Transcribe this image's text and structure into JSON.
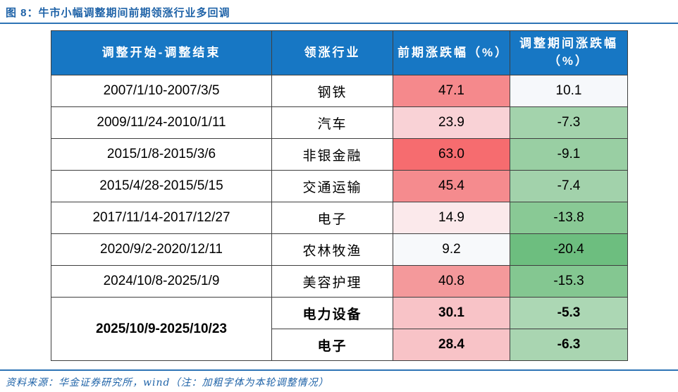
{
  "figure": {
    "title": "图 8：牛市小幅调整期间前期领涨行业多回调",
    "source_note": "资料来源：华金证券研究所，wind（注：加粗字体为本轮调整情况）"
  },
  "colors": {
    "header_bg": "#1777C4",
    "title_blue": "#1F63A8",
    "rule_blue": "#2E74B5",
    "border": "#3F3F3F"
  },
  "table": {
    "headers": [
      "调整开始-调整结束",
      "领涨行业",
      "前期涨跌幅（%）",
      "调整期间涨跌幅（%）"
    ],
    "rows": [
      {
        "period": "2007/1/10-2007/3/5",
        "industry": "钢铁",
        "prior": "47.1",
        "during": "10.1",
        "prior_bg": "#F5898C",
        "during_bg": "#F6F8FB"
      },
      {
        "period": "2009/11/24-2010/1/11",
        "industry": "汽车",
        "prior": "23.9",
        "during": "-7.3",
        "prior_bg": "#F9D2D6",
        "during_bg": "#A3D3AC"
      },
      {
        "period": "2015/1/8-2015/3/6",
        "industry": "非银金融",
        "prior": "63.0",
        "during": "-9.1",
        "prior_bg": "#F66C6F",
        "during_bg": "#99CFA3"
      },
      {
        "period": "2015/4/28-2015/5/15",
        "industry": "交通运输",
        "prior": "45.4",
        "during": "-7.4",
        "prior_bg": "#F58B8E",
        "during_bg": "#A2D2AB"
      },
      {
        "period": "2017/11/14-2017/12/27",
        "industry": "电子",
        "prior": "14.9",
        "during": "-13.8",
        "prior_bg": "#FBE9EB",
        "during_bg": "#89C995"
      },
      {
        "period": "2020/9/2-2020/12/11",
        "industry": "农林牧渔",
        "prior": "9.2",
        "during": "-20.4",
        "prior_bg": "#F7F9FB",
        "during_bg": "#6DBE7F"
      },
      {
        "period": "2024/10/8-2025/1/9",
        "industry": "美容护理",
        "prior": "40.8",
        "during": "-15.3",
        "prior_bg": "#F4999B",
        "during_bg": "#84C791"
      },
      {
        "period": "2025/10/9-2025/10/23",
        "industry": "电力设备",
        "prior": "30.1",
        "during": "-5.3",
        "prior_bg": "#F8C3C7",
        "during_bg": "#ACD7B4"
      },
      {
        "period": "2025/10/9-2025/10/23",
        "industry": "电子",
        "prior": "28.4",
        "during": "-6.3",
        "prior_bg": "#F8C3C7",
        "during_bg": "#A9D5B1"
      }
    ]
  },
  "chart_data": {
    "type": "table",
    "title": "图 8：牛市小幅调整期间前期领涨行业多回调",
    "columns": [
      "调整开始-调整结束",
      "领涨行业",
      "前期涨跌幅（%）",
      "调整期间涨跌幅（%）"
    ],
    "rows": [
      [
        "2007/1/10-2007/3/5",
        "钢铁",
        47.1,
        10.1
      ],
      [
        "2009/11/24-2010/1/11",
        "汽车",
        23.9,
        -7.3
      ],
      [
        "2015/1/8-2015/3/6",
        "非银金融",
        63.0,
        -9.1
      ],
      [
        "2015/4/28-2015/5/15",
        "交通运输",
        45.4,
        -7.4
      ],
      [
        "2017/11/14-2017/12/27",
        "电子",
        14.9,
        -13.8
      ],
      [
        "2020/9/2-2020/12/11",
        "农林牧渔",
        9.2,
        -20.4
      ],
      [
        "2024/10/8-2025/1/9",
        "美容护理",
        40.8,
        -15.3
      ],
      [
        "2025/10/9-2025/10/23",
        "电力设备",
        30.1,
        -5.3
      ],
      [
        "2025/10/9-2025/10/23",
        "电子",
        28.4,
        -6.3
      ]
    ],
    "bold_rows": [
      7,
      8
    ],
    "cell_shading": "前期涨跌幅 column shaded red (intensity ∝ gain); 调整期间涨跌幅 column shaded green (intensity ∝ loss), near-white for positive/small values"
  }
}
